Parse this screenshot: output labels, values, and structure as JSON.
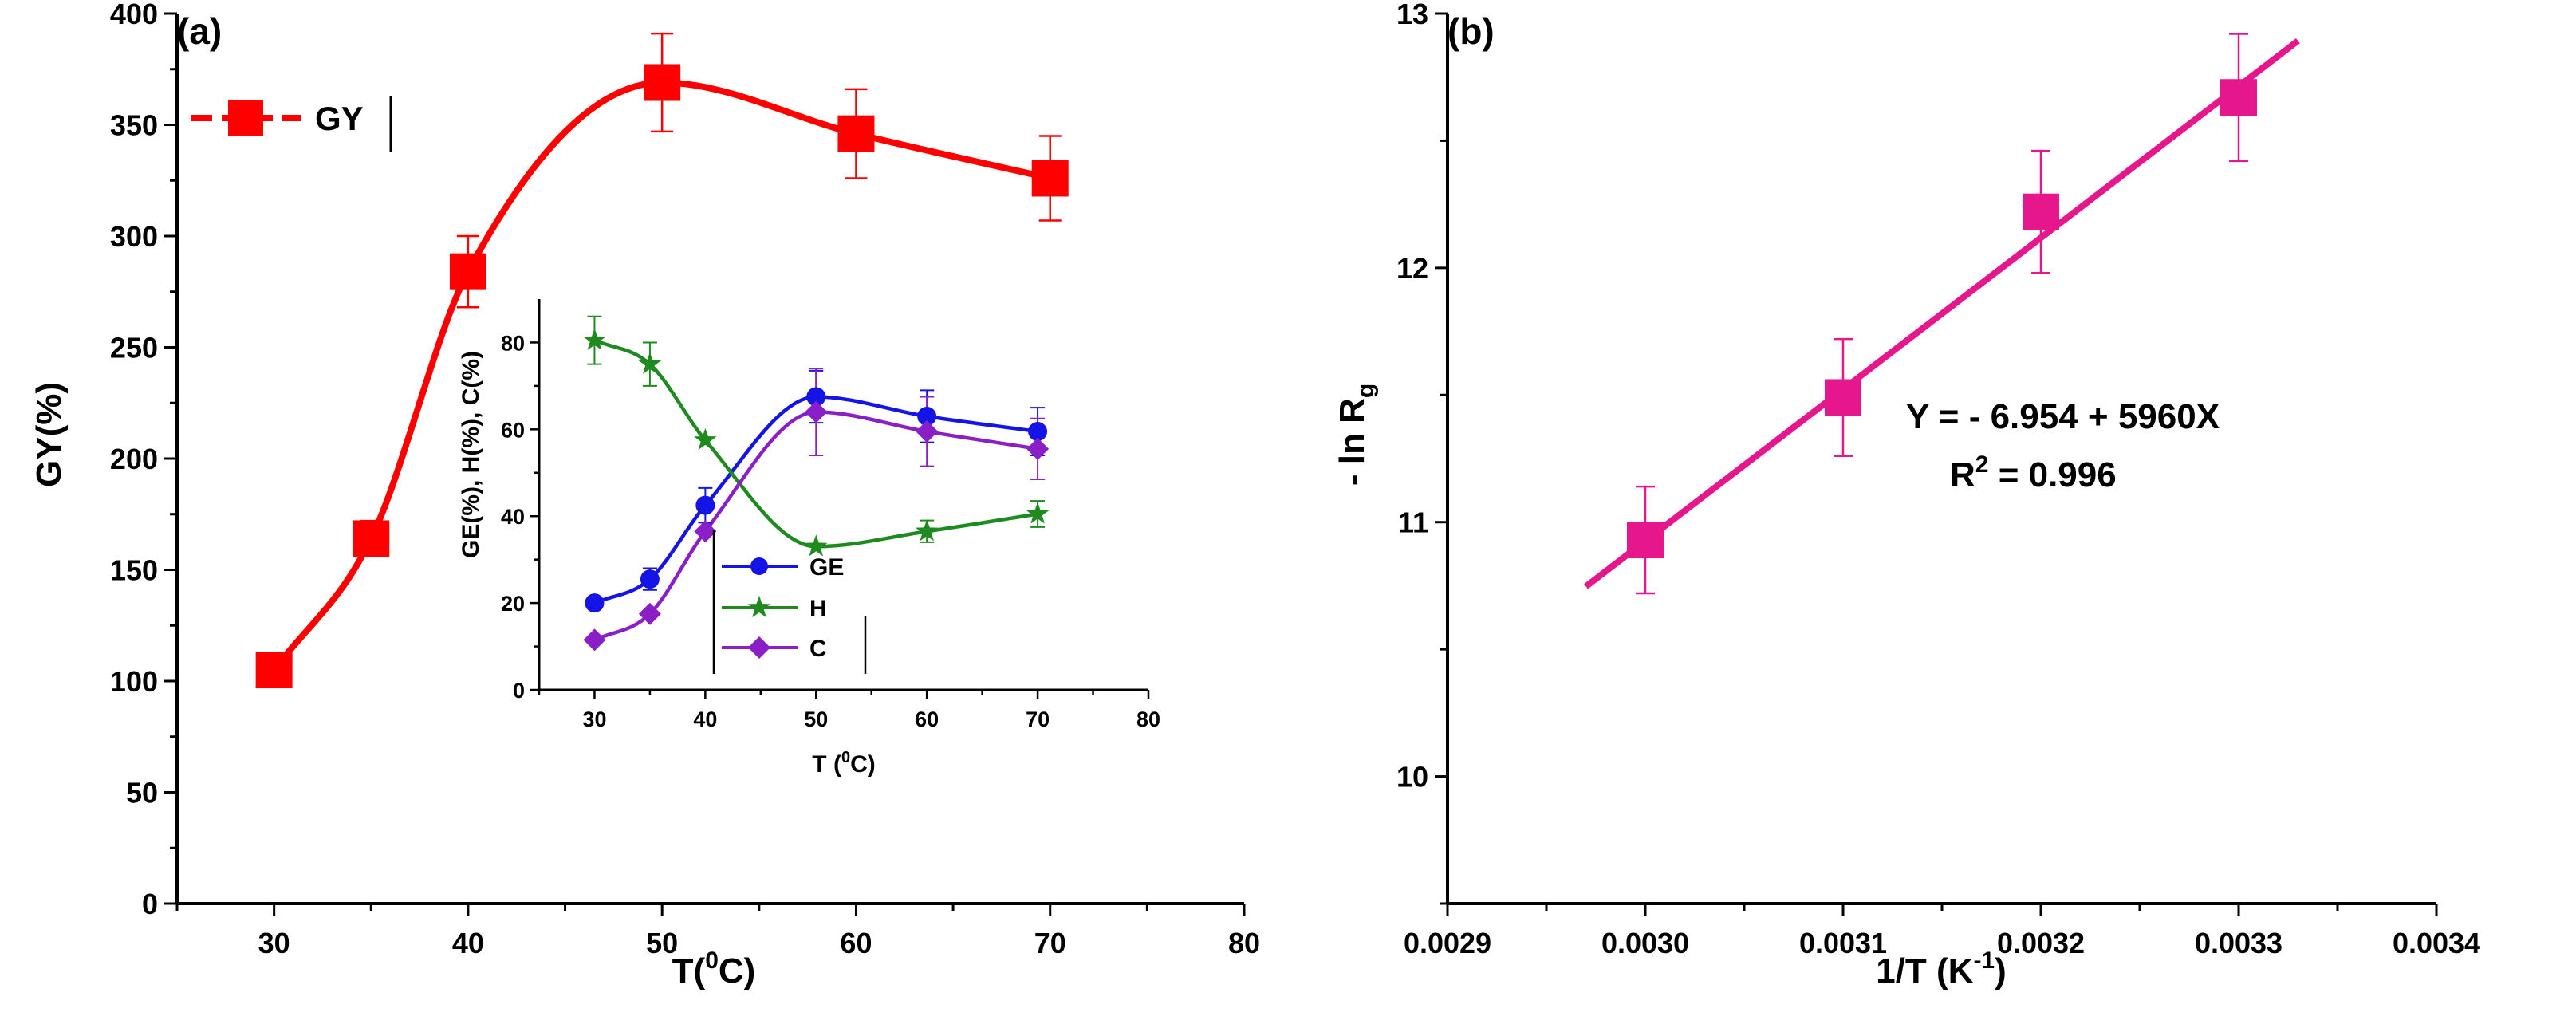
{
  "colors": {
    "gy": "#ff0000",
    "ge": "#1414e6",
    "h": "#1f8a1f",
    "c": "#8a1fc7",
    "lnrg": "#e6168c",
    "axis": "#000000"
  },
  "chart_data": [
    {
      "type": "line",
      "panel_label": "(a)",
      "xlabel": "T(",
      "xlabel_sup": "0",
      "xlabel_end": "C)",
      "ylabel": "GY(%)",
      "xlim": [
        25,
        80
      ],
      "ylim": [
        0,
        400
      ],
      "xticks": [
        "30",
        "40",
        "50",
        "60",
        "70",
        "80"
      ],
      "yticks": [
        "0",
        "50",
        "100",
        "150",
        "200",
        "250",
        "300",
        "350",
        "400"
      ],
      "legend_position": "top-left",
      "series": [
        {
          "name": "GY",
          "x": [
            30,
            35,
            40,
            50,
            60,
            70
          ],
          "y": [
            105,
            164,
            284,
            369,
            346,
            326
          ],
          "err": [
            0,
            8,
            16,
            22,
            20,
            19
          ]
        }
      ],
      "inset": {
        "type": "line",
        "xlabel": "T (",
        "xlabel_sup": "0",
        "xlabel_end": "C)",
        "ylabel": "GE(%), H(%), C(%)",
        "xlim": [
          25,
          80
        ],
        "ylim": [
          0,
          90
        ],
        "xticks": [
          "30",
          "40",
          "50",
          "60",
          "70",
          "80"
        ],
        "yticks": [
          "0",
          "20",
          "40",
          "60",
          "80"
        ],
        "legend_position": "bottom-center",
        "series": [
          {
            "name": "GE",
            "x": [
              30,
              35,
              40,
              50,
              60,
              70
            ],
            "y": [
              20,
              25.5,
              42.5,
              67.5,
              63,
              59.5
            ],
            "err": [
              0,
              2.5,
              4,
              6,
              6,
              5.5
            ]
          },
          {
            "name": "H",
            "x": [
              30,
              35,
              40,
              50,
              60,
              70
            ],
            "y": [
              80.5,
              75,
              57.5,
              33,
              36.5,
              40.5
            ],
            "err": [
              5.5,
              5,
              0,
              0,
              2.5,
              3
            ]
          },
          {
            "name": "C",
            "x": [
              30,
              35,
              40,
              50,
              60,
              70
            ],
            "y": [
              11.5,
              17.5,
              36.5,
              64,
              59.5,
              55.5
            ],
            "err": [
              0,
              0,
              0,
              10,
              8,
              7
            ]
          }
        ]
      }
    },
    {
      "type": "scatter",
      "panel_label": "(b)",
      "xlabel": "1/T (K",
      "xlabel_sup": "-1",
      "xlabel_end": ")",
      "ylabel": "- ln R",
      "ylabel_sub": "g",
      "xlim": [
        0.0029,
        0.0034
      ],
      "ylim": [
        9.5,
        13
      ],
      "xticks": [
        "0.0029",
        "0.0030",
        "0.0031",
        "0.0032",
        "0.0033",
        "0.0034"
      ],
      "yticks": [
        "10",
        "11",
        "12",
        "13"
      ],
      "series": [
        {
          "x": [
            0.003,
            0.0031,
            0.0032,
            0.0033
          ],
          "y": [
            10.93,
            11.49,
            12.22,
            12.67
          ],
          "err": [
            0.21,
            0.23,
            0.24,
            0.25
          ]
        }
      ],
      "fit_line": {
        "x": [
          0.00297,
          0.00333
        ]
      },
      "equation": "Y = - 6.954 + 5960X",
      "r2_label": "R",
      "r2_sup": "2",
      "r2_value": " = 0.996"
    }
  ]
}
